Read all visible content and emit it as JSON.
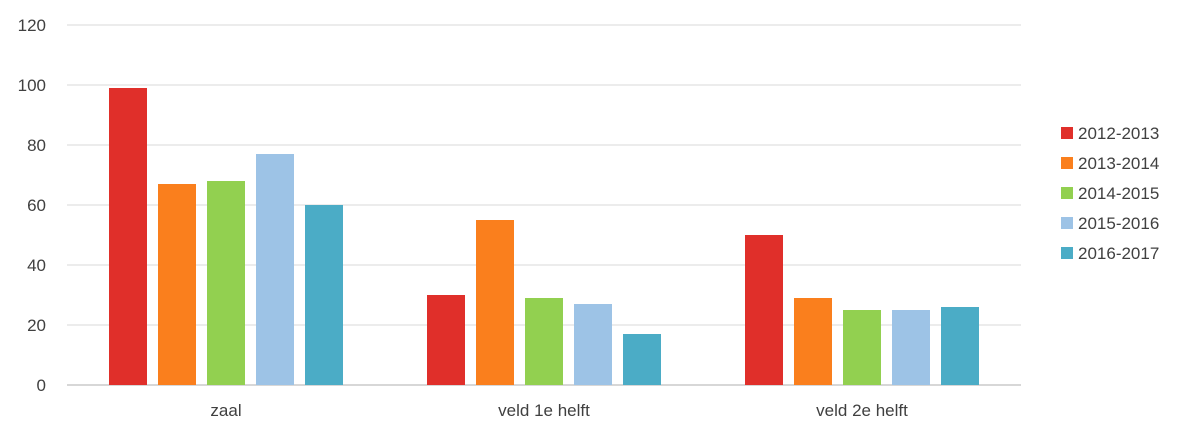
{
  "chart_data": {
    "type": "bar",
    "categories": [
      "zaal",
      "veld 1e helft",
      "veld 2e helft"
    ],
    "series": [
      {
        "name": "2012-2013",
        "color": "#e02f2a",
        "values": [
          99,
          30,
          50
        ]
      },
      {
        "name": "2013-2014",
        "color": "#fa7f1d",
        "values": [
          67,
          55,
          29
        ]
      },
      {
        "name": "2014-2015",
        "color": "#92d050",
        "values": [
          68,
          29,
          25
        ]
      },
      {
        "name": "2015-2016",
        "color": "#9dc3e6",
        "values": [
          77,
          27,
          25
        ]
      },
      {
        "name": "2016-2017",
        "color": "#4bacc6",
        "values": [
          60,
          17,
          26
        ]
      }
    ],
    "yticks": [
      "0",
      "20",
      "40",
      "60",
      "80",
      "100",
      "120"
    ],
    "ylim": [
      0,
      120
    ],
    "grid": true,
    "legend_position": "right",
    "title": "",
    "xlabel": "",
    "ylabel": ""
  }
}
